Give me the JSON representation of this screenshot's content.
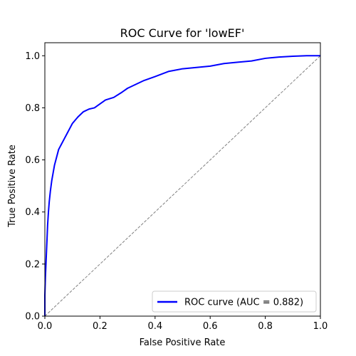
{
  "chart_data": {
    "type": "line",
    "title": "ROC Curve for 'lowEF'",
    "xlabel": "False Positive Rate",
    "ylabel": "True Positive Rate",
    "xlim": [
      0.0,
      1.0
    ],
    "ylim": [
      0.0,
      1.05
    ],
    "x_ticks": [
      "0.0",
      "0.2",
      "0.4",
      "0.6",
      "0.8",
      "1.0"
    ],
    "y_ticks": [
      "0.0",
      "0.2",
      "0.4",
      "0.6",
      "0.8",
      "1.0"
    ],
    "x_tick_values": [
      0.0,
      0.2,
      0.4,
      0.6,
      0.8,
      1.0
    ],
    "y_tick_values": [
      0.0,
      0.2,
      0.4,
      0.6,
      0.8,
      1.0
    ],
    "grid": false,
    "legend_position": "lower-right",
    "series": [
      {
        "name": "ROC curve (AUC = 0.882)",
        "color": "#0000ff",
        "style": "solid",
        "x": [
          0.0,
          0.0,
          0.002,
          0.004,
          0.006,
          0.008,
          0.01,
          0.013,
          0.016,
          0.02,
          0.025,
          0.03,
          0.035,
          0.04,
          0.05,
          0.06,
          0.07,
          0.08,
          0.09,
          0.1,
          0.12,
          0.14,
          0.16,
          0.18,
          0.2,
          0.22,
          0.25,
          0.28,
          0.3,
          0.33,
          0.36,
          0.4,
          0.45,
          0.5,
          0.55,
          0.6,
          0.65,
          0.7,
          0.75,
          0.8,
          0.85,
          0.9,
          0.95,
          1.0
        ],
        "y": [
          0.0,
          0.08,
          0.15,
          0.2,
          0.25,
          0.3,
          0.35,
          0.4,
          0.44,
          0.48,
          0.52,
          0.55,
          0.58,
          0.6,
          0.64,
          0.66,
          0.68,
          0.7,
          0.72,
          0.74,
          0.765,
          0.785,
          0.795,
          0.8,
          0.815,
          0.83,
          0.84,
          0.86,
          0.875,
          0.89,
          0.905,
          0.92,
          0.94,
          0.95,
          0.955,
          0.96,
          0.97,
          0.975,
          0.98,
          0.99,
          0.995,
          0.998,
          1.0,
          1.0
        ]
      },
      {
        "name": "",
        "color": "#808080",
        "style": "dashed",
        "x": [
          0.0,
          1.0
        ],
        "y": [
          0.0,
          1.0
        ]
      }
    ],
    "legend": [
      "ROC curve (AUC = 0.882)"
    ]
  }
}
